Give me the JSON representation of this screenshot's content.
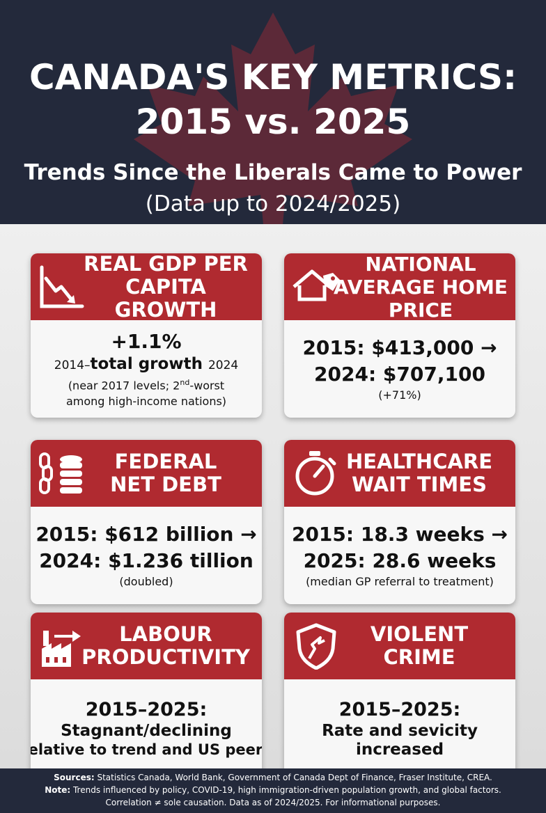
{
  "header": {
    "title_line1": "CANADA'S KEY METRICS:",
    "title_line2": "2015 vs. 2025",
    "subtitle_line1": "Trends Since the Liberals Came to Power",
    "subtitle_line2": "(Data up to 2024/2025)"
  },
  "colors": {
    "navy": "#23293b",
    "header_red": "#b02a30",
    "card_bg": "#f7f7f7"
  },
  "cards": {
    "gdp": {
      "icon": "declining-chart-icon",
      "title": "REAL GDP PER\nCAPITA GROWTH",
      "value": "+1.1%",
      "year_start": "2014–",
      "label": "total growth",
      "year_end": "2024",
      "note_pre": "(near 2017 levels; 2",
      "note_sup": "nd",
      "note_post": "-worst",
      "note_line2": "among high-income nations)"
    },
    "home": {
      "icon": "house-price-tag-icon",
      "title": "NATIONAL\nAVERAGE HOME PRICE",
      "line1": "2015: $413,000 →",
      "line2": "2024: $707,100",
      "note": "(+71%)"
    },
    "debt": {
      "icon": "chain-coins-icon",
      "title": "FEDERAL\nNET DEBT",
      "line1": "2015: $612 billion →",
      "line2": "2024: $1.236 tillion",
      "note": "(doubled)"
    },
    "health": {
      "icon": "stopwatch-icon",
      "title": "HEALTHCARE\nWAIT TIMES",
      "line1": "2015: 18.3 weeks →",
      "line2": "2025: 28.6 weeks",
      "note": "(median GP referral to treatment)"
    },
    "labour": {
      "icon": "factory-arrow-icon",
      "title": "LABOUR\nPRODUCTIVITY",
      "line1": "2015–2025:",
      "line2": "Stagnant/declining",
      "line3": "relative to trend and US peers"
    },
    "crime": {
      "icon": "broken-shield-icon",
      "title": "VIOLENT\nCRIME",
      "line1": "2015–2025:",
      "line2": "Rate and sevicity",
      "line3": "increased"
    }
  },
  "footer": {
    "sources_label": "Sources:",
    "sources_text": " Statistics Canada, World Bank, Government of Canada Dept of Finance, Fraser Institute, CREA.",
    "note_label": "Note:",
    "note_text": " Trends influenced by policy, COVID-19, high immigration-driven population growth, and global factors.",
    "line3": "Correlation ≠ sole causation. Data as of 2024/2025. For informational purposes."
  }
}
